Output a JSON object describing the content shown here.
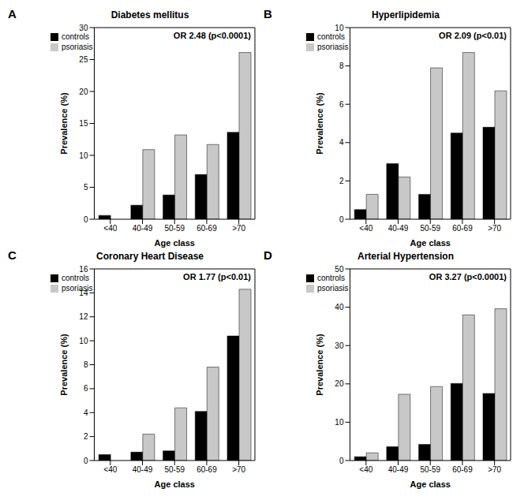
{
  "chart_data": [
    {
      "type": "bar",
      "panel_label": "A",
      "title": "Diabetes mellitus",
      "annotation": "OR 2.48 (p<0.0001)",
      "x_label": "Age class",
      "y_label": "Prevalence (%)",
      "categories": [
        "<40",
        "40-49",
        "50-59",
        "60-69",
        ">70"
      ],
      "series": [
        {
          "name": "controls",
          "color": "#000000",
          "values": [
            0.6,
            2.2,
            3.8,
            7.0,
            13.6
          ]
        },
        {
          "name": "psoriasis",
          "color": "#c8c8c8",
          "values": [
            0,
            10.9,
            13.2,
            11.7,
            26.1
          ]
        }
      ],
      "ylim": [
        0,
        30
      ],
      "yticks": [
        0,
        5,
        10,
        15,
        20,
        25,
        30
      ],
      "legend": "upper left",
      "grid": false
    },
    {
      "type": "bar",
      "panel_label": "B",
      "title": "Hyperlipidemia",
      "annotation": "OR 2.09 (p<0.01)",
      "x_label": "Age class",
      "y_label": "Prevalence (%)",
      "categories": [
        "<40",
        "40-49",
        "50-59",
        "60-69",
        ">70"
      ],
      "series": [
        {
          "name": "controls",
          "color": "#000000",
          "values": [
            0.5,
            2.9,
            1.3,
            4.5,
            4.8
          ]
        },
        {
          "name": "psoriasis",
          "color": "#c8c8c8",
          "values": [
            1.3,
            2.2,
            7.9,
            8.7,
            6.7
          ]
        }
      ],
      "ylim": [
        0,
        10
      ],
      "yticks": [
        0,
        2,
        4,
        6,
        8,
        10
      ],
      "legend": "upper left",
      "grid": false
    },
    {
      "type": "bar",
      "panel_label": "C",
      "title": "Coronary Heart Disease",
      "annotation": "OR 1.77 (p<0.01)",
      "x_label": "Age class",
      "y_label": "Prevalence (%)",
      "categories": [
        "<40",
        "40-49",
        "50-59",
        "60-69",
        ">70"
      ],
      "series": [
        {
          "name": "controls",
          "color": "#000000",
          "values": [
            0.5,
            0.7,
            0.8,
            4.1,
            10.4
          ]
        },
        {
          "name": "psoriasis",
          "color": "#c8c8c8",
          "values": [
            0,
            2.2,
            4.4,
            7.8,
            14.3
          ]
        }
      ],
      "ylim": [
        0,
        16
      ],
      "yticks": [
        0,
        2,
        4,
        6,
        8,
        10,
        12,
        14,
        16
      ],
      "legend": "upper left",
      "grid": false
    },
    {
      "type": "bar",
      "panel_label": "D",
      "title": "Arterial Hypertension",
      "annotation": "OR 3.27 (p<0.0001)",
      "x_label": "Age class",
      "y_label": "Prevalence (%)",
      "categories": [
        "<40",
        "40-49",
        "50-59",
        "60-69",
        ">70"
      ],
      "series": [
        {
          "name": "controls",
          "color": "#000000",
          "values": [
            1.0,
            3.6,
            4.2,
            20.1,
            17.5
          ]
        },
        {
          "name": "psoriasis",
          "color": "#c8c8c8",
          "values": [
            2.0,
            17.3,
            19.3,
            38.0,
            39.6
          ]
        }
      ],
      "ylim": [
        0,
        50
      ],
      "yticks": [
        0,
        10,
        20,
        30,
        40,
        50
      ],
      "legend": "upper left",
      "grid": false
    }
  ]
}
